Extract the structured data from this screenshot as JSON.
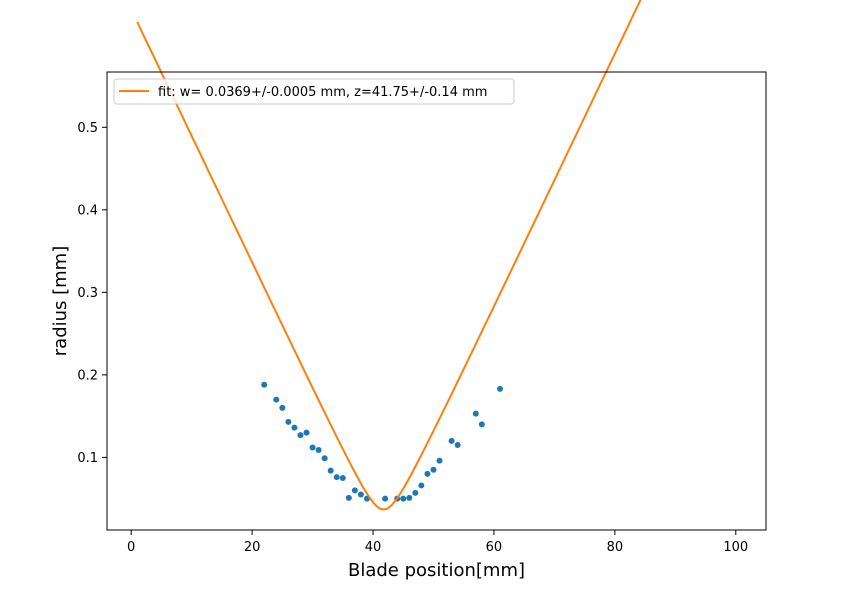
{
  "chart_data": {
    "type": "scatter",
    "xlabel": "Blade position[mm]",
    "ylabel": "radius [mm]",
    "xlim": [
      -4,
      105
    ],
    "ylim": [
      0.012,
      0.567
    ],
    "xticks": [
      0,
      20,
      40,
      60,
      80,
      100
    ],
    "yticks": [
      0.1,
      0.2,
      0.3,
      0.4,
      0.5
    ],
    "xtick_labels": [
      "0",
      "20",
      "40",
      "60",
      "80",
      "100"
    ],
    "ytick_labels": [
      "0.1",
      "0.2",
      "0.3",
      "0.4",
      "0.5"
    ],
    "grid": false,
    "legend_position": "top-left",
    "series": [
      {
        "kind": "points",
        "color": "#1f77b4",
        "x": [
          22,
          24,
          25,
          26,
          27,
          28,
          29,
          30,
          31,
          32,
          33,
          34,
          35,
          36,
          37,
          38,
          39,
          42,
          44,
          45,
          46,
          47,
          48,
          49,
          50,
          51,
          53,
          54,
          57,
          58,
          61
        ],
        "y": [
          0.188,
          0.17,
          0.16,
          0.143,
          0.136,
          0.127,
          0.13,
          0.112,
          0.109,
          0.099,
          0.084,
          0.076,
          0.075,
          0.051,
          0.06,
          0.055,
          0.05,
          0.05,
          0.05,
          0.05,
          0.051,
          0.057,
          0.066,
          0.08,
          0.085,
          0.096,
          0.12,
          0.115,
          0.153,
          0.14,
          0.183
        ]
      },
      {
        "kind": "fit-line",
        "name": "fit: w= 0.0369+/-0.0005 mm, z=41.75+/-0.14 mm",
        "color": "#ff7f0e",
        "w": 0.0369,
        "z": 41.75,
        "x_range": [
          1,
          100
        ]
      }
    ]
  }
}
